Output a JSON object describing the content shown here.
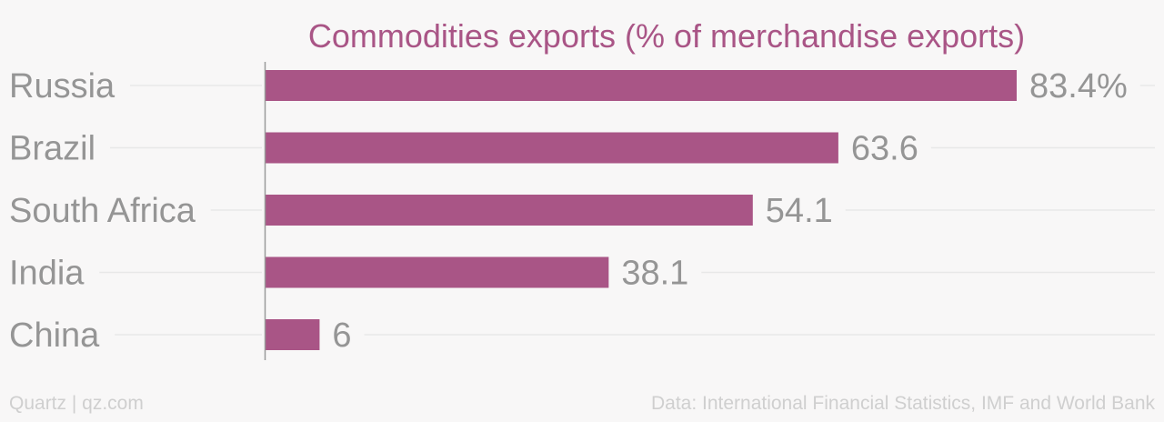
{
  "chart_data": {
    "type": "bar",
    "orientation": "horizontal",
    "title": "Commodities exports (% of merchandise exports)",
    "categories": [
      "Russia",
      "Brazil",
      "South Africa",
      "India",
      "China"
    ],
    "values": [
      83.4,
      63.6,
      54.1,
      38.1,
      6
    ],
    "value_labels": [
      "83.4%",
      "63.6",
      "54.1",
      "38.1",
      "6"
    ],
    "xlim": [
      0,
      83.4
    ],
    "grid": "horizontal guide lines per category",
    "legend": "none"
  },
  "footer": {
    "source_left": "Quartz | qz.com",
    "source_right": "Data: International Financial Statistics, IMF and World Bank"
  },
  "colors": {
    "bar": "#a95586",
    "title": "#a95586",
    "category_label": "#959595",
    "value_label": "#959595",
    "gridline": "#e8e8e8",
    "axis": "#9a9a9a",
    "footer": "#cfcfcf",
    "background": "#f8f7f7"
  }
}
